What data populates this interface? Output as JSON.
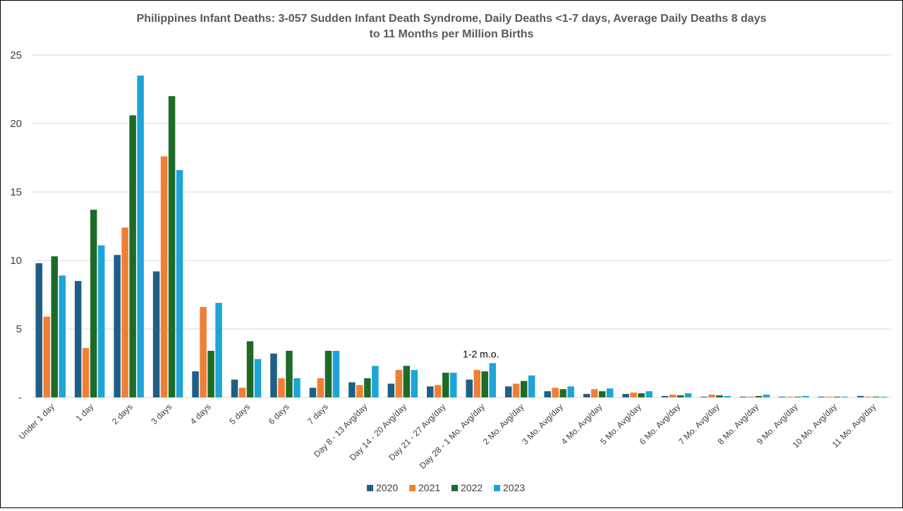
{
  "chart_data": {
    "type": "bar",
    "title_lines": [
      "Philippines Infant Deaths: 3-057 Sudden Infant Death Syndrome, Daily Deaths <1-7 days, Average Daily Deaths 8 days",
      "to 11 Months per Million Births"
    ],
    "xlabel": "",
    "ylabel": "",
    "ylim": [
      0,
      25
    ],
    "yticks": [
      0,
      5,
      10,
      15,
      20,
      25
    ],
    "ytick_labels": [
      "-",
      "5",
      "10",
      "15",
      "20",
      "25"
    ],
    "grid": true,
    "legend_position": "bottom",
    "categories": [
      "Under 1 day",
      "1 day",
      "2 days",
      "3 days",
      "4 days",
      "5 days",
      "6 days",
      "7 days",
      "Day 8 - 13 Avg/day",
      "Day 14 - 20 Avg/day",
      "Day 21 - 27 Avg/day",
      "Day 28 - 1 Mo. Avg/day",
      "2 Mo. Avg/day",
      "3 Mo.  Avg/day",
      "4 Mo. Avg/day",
      "5 Mo.  Avg/day",
      "6 Mo. Avg/day",
      "7 Mo. Avg/day",
      "8 Mo. Avg/day",
      "9 Mo. Avg/day",
      "10 Mo. Avg/day",
      "11 Mo. Avg/day"
    ],
    "series": [
      {
        "name": "2020",
        "color": "#1f5f85",
        "values": [
          9.8,
          8.5,
          10.4,
          9.2,
          1.9,
          1.3,
          3.2,
          0.7,
          1.1,
          1.0,
          0.8,
          1.3,
          0.8,
          0.45,
          0.25,
          0.25,
          0.1,
          0.05,
          0.05,
          0.05,
          0.05,
          0.1
        ]
      },
      {
        "name": "2021",
        "color": "#f07f35",
        "values": [
          5.9,
          3.6,
          12.4,
          17.6,
          6.6,
          0.7,
          1.4,
          1.4,
          0.9,
          2.0,
          0.9,
          2.0,
          1.0,
          0.7,
          0.6,
          0.35,
          0.2,
          0.2,
          0.05,
          0.05,
          0.05,
          0.05
        ]
      },
      {
        "name": "2022",
        "color": "#1e6b28",
        "values": [
          10.3,
          13.7,
          20.6,
          22.0,
          3.4,
          4.1,
          3.4,
          3.4,
          1.4,
          2.3,
          1.8,
          1.9,
          1.2,
          0.6,
          0.45,
          0.3,
          0.15,
          0.15,
          0.1,
          0.05,
          0.05,
          0.05
        ]
      },
      {
        "name": "2023",
        "color": "#1ea4d8",
        "values": [
          8.9,
          11.1,
          23.5,
          16.6,
          6.9,
          2.8,
          1.4,
          3.4,
          2.3,
          2.0,
          1.8,
          2.5,
          1.6,
          0.8,
          0.65,
          0.45,
          0.3,
          0.1,
          0.2,
          0.1,
          0.05,
          0.05
        ]
      }
    ],
    "annotation": {
      "text": "1-2 m.o.",
      "category": "Day 28 - 1 Mo. Avg/day"
    }
  }
}
